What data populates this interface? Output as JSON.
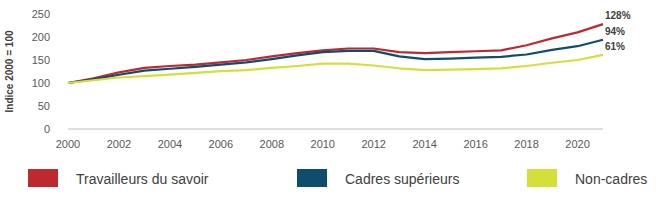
{
  "chart_data": {
    "type": "line",
    "y_label": "Indice 2000 = 100",
    "x": [
      2000,
      2001,
      2002,
      2003,
      2004,
      2005,
      2006,
      2007,
      2008,
      2009,
      2010,
      2011,
      2012,
      2013,
      2014,
      2015,
      2016,
      2017,
      2018,
      2019,
      2020,
      2021
    ],
    "series": [
      {
        "name": "Travailleurs du savoir",
        "color": "#c0282f",
        "values": [
          100,
          110,
          123,
          133,
          137,
          140,
          145,
          150,
          158,
          165,
          171,
          175,
          175,
          167,
          165,
          167,
          169,
          171,
          182,
          197,
          210,
          228
        ]
      },
      {
        "name": "Cadres supérieurs",
        "color": "#0e4d6e",
        "values": [
          100,
          108,
          118,
          127,
          131,
          135,
          140,
          145,
          152,
          160,
          167,
          170,
          170,
          158,
          152,
          153,
          155,
          157,
          162,
          172,
          180,
          194
        ]
      },
      {
        "name": "Non-cadres",
        "color": "#d4df3a",
        "values": [
          100,
          106,
          112,
          115,
          118,
          122,
          126,
          128,
          133,
          137,
          142,
          142,
          138,
          132,
          128,
          129,
          130,
          132,
          137,
          144,
          150,
          161
        ]
      }
    ],
    "annotations": [
      {
        "text": "128%",
        "x": 2021,
        "y": 228
      },
      {
        "text": "94%",
        "x": 2021,
        "y": 194
      },
      {
        "text": "61%",
        "x": 2021,
        "y": 161
      }
    ],
    "xlim": [
      2000,
      2021
    ],
    "xticks": [
      2000,
      2002,
      2004,
      2006,
      2008,
      2010,
      2012,
      2014,
      2016,
      2018,
      2020
    ],
    "ylim": [
      0,
      250
    ],
    "yticks": [
      0,
      50,
      100,
      150,
      200,
      250
    ],
    "grid": false,
    "legend": "bottom"
  }
}
